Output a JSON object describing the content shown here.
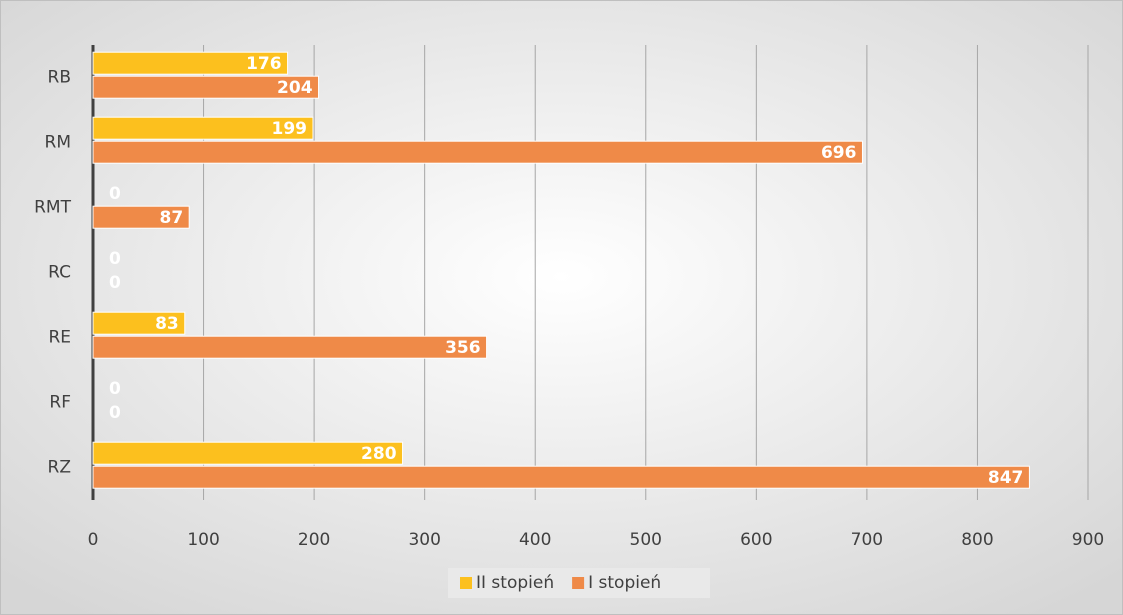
{
  "chart_data": {
    "type": "barh",
    "categories": [
      "RB",
      "RM",
      "RMT",
      "RC",
      "RE",
      "RF",
      "RZ"
    ],
    "series": [
      {
        "name": "II stopień",
        "color": "#fcc01e",
        "values": [
          176,
          199,
          0,
          0,
          83,
          0,
          280
        ]
      },
      {
        "name": "I stopień",
        "color": "#ef8a48",
        "values": [
          204,
          696,
          87,
          0,
          356,
          0,
          847
        ]
      }
    ],
    "xlim": [
      0,
      900
    ],
    "xticks": [
      0,
      100,
      200,
      300,
      400,
      500,
      600,
      700,
      800,
      900
    ],
    "grid": true,
    "legend": "bottom"
  }
}
